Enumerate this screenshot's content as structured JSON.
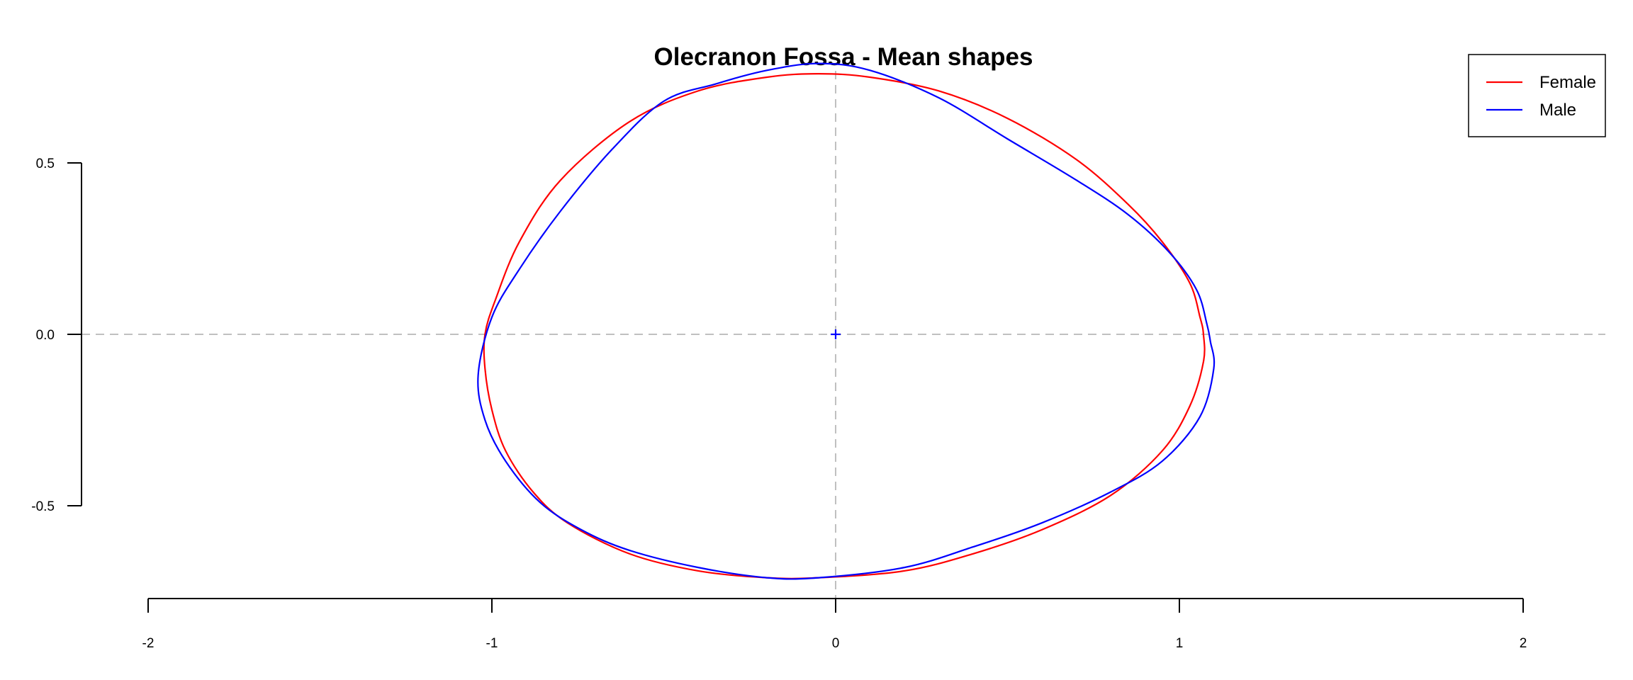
{
  "chart_data": {
    "type": "line",
    "title": "Olecranon Fossa - Mean shapes",
    "xlabel": "",
    "ylabel": "",
    "xlim": [
      -2,
      2
    ],
    "ylim": [
      -0.75,
      0.8
    ],
    "x_ticks": [
      -2,
      -1,
      0,
      1,
      2
    ],
    "x_tick_labels": [
      "-2",
      "-1",
      "0",
      "1",
      "2"
    ],
    "y_ticks": [
      -0.5,
      0.0,
      0.5
    ],
    "y_tick_labels": [
      "-0.5",
      "0.0",
      "0.5"
    ],
    "reference_lines": {
      "x": 0,
      "y": 0,
      "style": "dashed",
      "color": "#c0c0c0"
    },
    "centroid": {
      "x": 0,
      "y": 0,
      "marker": "+"
    },
    "legend": {
      "placement": "top-right",
      "entries": [
        {
          "label": "Female",
          "color": "#ff0000"
        },
        {
          "label": "Male",
          "color": "#0000ff"
        }
      ]
    },
    "series": [
      {
        "name": "Female",
        "color": "#ff0000",
        "closed": true,
        "points": [
          [
            1.07,
            0.0
          ],
          [
            1.06,
            0.05
          ],
          [
            1.03,
            0.15
          ],
          [
            0.95,
            0.27
          ],
          [
            0.85,
            0.38
          ],
          [
            0.7,
            0.51
          ],
          [
            0.5,
            0.63
          ],
          [
            0.3,
            0.71
          ],
          [
            0.1,
            0.75
          ],
          [
            -0.05,
            0.76
          ],
          [
            -0.2,
            0.75
          ],
          [
            -0.4,
            0.71
          ],
          [
            -0.6,
            0.62
          ],
          [
            -0.8,
            0.45
          ],
          [
            -0.92,
            0.27
          ],
          [
            -0.99,
            0.1
          ],
          [
            -1.02,
            0.0
          ],
          [
            -1.02,
            -0.1
          ],
          [
            -1.0,
            -0.22
          ],
          [
            -0.96,
            -0.34
          ],
          [
            -0.88,
            -0.46
          ],
          [
            -0.78,
            -0.55
          ],
          [
            -0.6,
            -0.64
          ],
          [
            -0.4,
            -0.69
          ],
          [
            -0.2,
            -0.71
          ],
          [
            -0.05,
            -0.71
          ],
          [
            0.2,
            -0.69
          ],
          [
            0.4,
            -0.64
          ],
          [
            0.6,
            -0.57
          ],
          [
            0.8,
            -0.47
          ],
          [
            0.95,
            -0.34
          ],
          [
            1.03,
            -0.21
          ],
          [
            1.07,
            -0.08
          ]
        ]
      },
      {
        "name": "Male",
        "color": "#0000ff",
        "closed": true,
        "points": [
          [
            1.09,
            -0.02
          ],
          [
            1.08,
            0.03
          ],
          [
            1.05,
            0.13
          ],
          [
            0.97,
            0.24
          ],
          [
            0.85,
            0.35
          ],
          [
            0.7,
            0.45
          ],
          [
            0.5,
            0.57
          ],
          [
            0.3,
            0.69
          ],
          [
            0.1,
            0.77
          ],
          [
            -0.05,
            0.79
          ],
          [
            -0.2,
            0.77
          ],
          [
            -0.35,
            0.73
          ],
          [
            -0.5,
            0.68
          ],
          [
            -0.65,
            0.54
          ],
          [
            -0.8,
            0.36
          ],
          [
            -0.92,
            0.19
          ],
          [
            -1.0,
            0.05
          ],
          [
            -1.04,
            -0.12
          ],
          [
            -1.02,
            -0.25
          ],
          [
            -0.96,
            -0.37
          ],
          [
            -0.86,
            -0.49
          ],
          [
            -0.74,
            -0.57
          ],
          [
            -0.6,
            -0.63
          ],
          [
            -0.4,
            -0.68
          ],
          [
            -0.2,
            -0.71
          ],
          [
            -0.05,
            -0.71
          ],
          [
            0.2,
            -0.68
          ],
          [
            0.4,
            -0.62
          ],
          [
            0.6,
            -0.55
          ],
          [
            0.8,
            -0.46
          ],
          [
            0.95,
            -0.37
          ],
          [
            1.06,
            -0.24
          ],
          [
            1.1,
            -0.1
          ]
        ]
      }
    ]
  }
}
